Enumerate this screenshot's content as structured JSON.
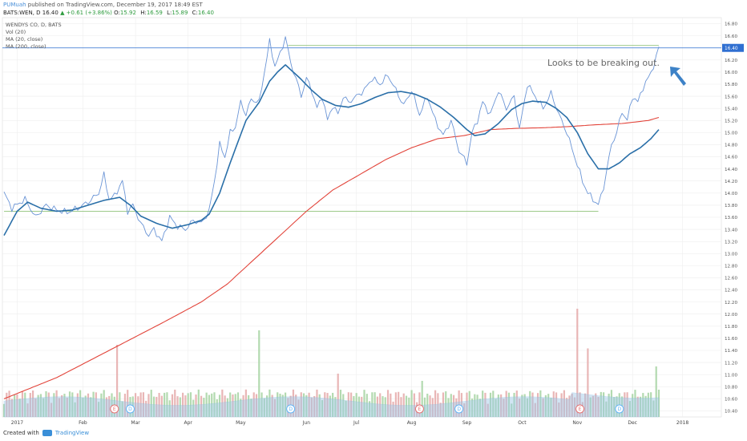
{
  "header": {
    "author": "PUMuah",
    "published_text": "published on TradingView.com, December 19, 2017 18:49 EST",
    "symbol": "BATS:WEN, D",
    "price": "16.40",
    "change": "▲ +0.61 (+3.86%)",
    "open_label": "O:",
    "open": "15.92",
    "high_label": "H:",
    "high": "16.59",
    "low_label": "L:",
    "low": "15.89",
    "close_label": "C:",
    "close": "16.40"
  },
  "legend": {
    "title": "WENDYS CO, D, BATS",
    "vol": "Vol (20)",
    "ma20": "MA (20, close)",
    "ma200": "MA (200, close)"
  },
  "annotation": "Looks to be breaking out.",
  "footer": {
    "created_with": "Created with",
    "brand": "TradingView"
  },
  "colors": {
    "price_line": "#6b95d6",
    "ma20": "#2a6fa8",
    "ma200": "#e2443a",
    "hline": "#8fc27a",
    "current_line": "#2f6fd1",
    "current_badge": "#2f6fd1",
    "arrow": "#3d82c7",
    "vol_up": "#a6d3a2",
    "vol_down": "#e5a9a9",
    "vol_ma": "#9cc7e8",
    "grid": "#eeeeee"
  },
  "chart_data": {
    "type": "line",
    "title": "WENDYS CO, D, BATS",
    "ylim": [
      10.3,
      16.9
    ],
    "y_ticks": [
      "16.80",
      "16.60",
      "16.40",
      "16.20",
      "16.00",
      "15.80",
      "15.60",
      "15.40",
      "15.20",
      "15.00",
      "14.80",
      "14.60",
      "14.40",
      "14.20",
      "14.00",
      "13.80",
      "13.60",
      "13.40",
      "13.20",
      "13.00",
      "12.80",
      "12.60",
      "12.40",
      "12.20",
      "12.00",
      "11.80",
      "11.60",
      "11.40",
      "11.20",
      "11.00",
      "10.80",
      "10.60",
      "10.40"
    ],
    "current_price": "16.40",
    "x_ticks": [
      {
        "label": "2017",
        "i": 5
      },
      {
        "label": "Feb",
        "i": 30
      },
      {
        "label": "Mar",
        "i": 50
      },
      {
        "label": "Apr",
        "i": 70
      },
      {
        "label": "May",
        "i": 90
      },
      {
        "label": "Jun",
        "i": 115
      },
      {
        "label": "Jul",
        "i": 134
      },
      {
        "label": "Aug",
        "i": 155
      },
      {
        "label": "Sep",
        "i": 176
      },
      {
        "label": "Oct",
        "i": 197
      },
      {
        "label": "Nov",
        "i": 218
      },
      {
        "label": "Dec",
        "i": 239
      },
      {
        "label": "2018",
        "i": 258
      }
    ],
    "n_bars": 250,
    "series": [
      {
        "name": "WEN close",
        "anchors": [
          [
            0,
            14.0
          ],
          [
            3,
            13.75
          ],
          [
            8,
            13.9
          ],
          [
            12,
            13.6
          ],
          [
            16,
            13.8
          ],
          [
            20,
            13.72
          ],
          [
            24,
            13.68
          ],
          [
            28,
            13.75
          ],
          [
            32,
            13.85
          ],
          [
            36,
            14.0
          ],
          [
            38,
            14.3
          ],
          [
            40,
            13.9
          ],
          [
            42,
            13.95
          ],
          [
            45,
            14.2
          ],
          [
            47,
            13.7
          ],
          [
            49,
            13.8
          ],
          [
            52,
            13.5
          ],
          [
            55,
            13.3
          ],
          [
            57,
            13.4
          ],
          [
            60,
            13.2
          ],
          [
            63,
            13.6
          ],
          [
            66,
            13.45
          ],
          [
            69,
            13.4
          ],
          [
            72,
            13.55
          ],
          [
            75,
            13.5
          ],
          [
            78,
            13.7
          ],
          [
            80,
            14.2
          ],
          [
            82,
            14.8
          ],
          [
            84,
            14.6
          ],
          [
            86,
            15.0
          ],
          [
            88,
            15.1
          ],
          [
            90,
            15.5
          ],
          [
            92,
            15.3
          ],
          [
            94,
            15.55
          ],
          [
            97,
            15.5
          ],
          [
            99,
            16.0
          ],
          [
            101,
            16.5
          ],
          [
            103,
            16.1
          ],
          [
            105,
            16.3
          ],
          [
            107,
            16.58
          ],
          [
            109,
            16.15
          ],
          [
            111,
            15.9
          ],
          [
            113,
            15.6
          ],
          [
            115,
            15.9
          ],
          [
            117,
            15.7
          ],
          [
            119,
            15.4
          ],
          [
            121,
            15.6
          ],
          [
            123,
            15.2
          ],
          [
            125,
            15.45
          ],
          [
            127,
            15.3
          ],
          [
            129,
            15.6
          ],
          [
            131,
            15.5
          ],
          [
            134,
            15.6
          ],
          [
            137,
            15.7
          ],
          [
            140,
            15.9
          ],
          [
            143,
            15.8
          ],
          [
            146,
            15.95
          ],
          [
            149,
            15.7
          ],
          [
            152,
            15.45
          ],
          [
            155,
            15.7
          ],
          [
            158,
            15.3
          ],
          [
            161,
            15.6
          ],
          [
            164,
            15.2
          ],
          [
            167,
            14.95
          ],
          [
            170,
            15.2
          ],
          [
            173,
            14.7
          ],
          [
            176,
            14.5
          ],
          [
            178,
            15.0
          ],
          [
            180,
            15.2
          ],
          [
            182,
            15.5
          ],
          [
            185,
            15.3
          ],
          [
            188,
            15.7
          ],
          [
            191,
            15.4
          ],
          [
            194,
            15.6
          ],
          [
            196,
            15.05
          ],
          [
            199,
            15.8
          ],
          [
            202,
            15.6
          ],
          [
            205,
            15.4
          ],
          [
            208,
            15.65
          ],
          [
            211,
            15.3
          ],
          [
            214,
            15.0
          ],
          [
            217,
            14.6
          ],
          [
            220,
            14.2
          ],
          [
            222,
            14.0
          ],
          [
            224,
            13.9
          ],
          [
            226,
            13.8
          ],
          [
            228,
            14.1
          ],
          [
            231,
            14.8
          ],
          [
            233,
            15.0
          ],
          [
            235,
            15.35
          ],
          [
            237,
            15.2
          ],
          [
            239,
            15.6
          ],
          [
            241,
            15.5
          ],
          [
            243,
            15.75
          ],
          [
            245,
            15.9
          ],
          [
            247,
            16.1
          ],
          [
            249,
            16.4
          ]
        ]
      },
      {
        "name": "MA (20, close)",
        "anchors": [
          [
            0,
            13.3
          ],
          [
            5,
            13.7
          ],
          [
            9,
            13.85
          ],
          [
            14,
            13.75
          ],
          [
            20,
            13.7
          ],
          [
            26,
            13.72
          ],
          [
            32,
            13.8
          ],
          [
            38,
            13.88
          ],
          [
            44,
            13.93
          ],
          [
            48,
            13.8
          ],
          [
            52,
            13.62
          ],
          [
            58,
            13.5
          ],
          [
            64,
            13.42
          ],
          [
            70,
            13.48
          ],
          [
            75,
            13.55
          ],
          [
            78,
            13.65
          ],
          [
            82,
            14.0
          ],
          [
            86,
            14.5
          ],
          [
            92,
            15.2
          ],
          [
            97,
            15.5
          ],
          [
            101,
            15.85
          ],
          [
            104,
            16.0
          ],
          [
            107,
            16.12
          ],
          [
            110,
            16.0
          ],
          [
            113,
            15.88
          ],
          [
            117,
            15.7
          ],
          [
            121,
            15.55
          ],
          [
            126,
            15.45
          ],
          [
            131,
            15.42
          ],
          [
            136,
            15.48
          ],
          [
            141,
            15.58
          ],
          [
            146,
            15.66
          ],
          [
            151,
            15.68
          ],
          [
            156,
            15.64
          ],
          [
            161,
            15.55
          ],
          [
            166,
            15.42
          ],
          [
            171,
            15.25
          ],
          [
            176,
            15.05
          ],
          [
            179,
            14.95
          ],
          [
            183,
            14.98
          ],
          [
            188,
            15.15
          ],
          [
            193,
            15.38
          ],
          [
            197,
            15.48
          ],
          [
            201,
            15.52
          ],
          [
            206,
            15.5
          ],
          [
            210,
            15.4
          ],
          [
            214,
            15.25
          ],
          [
            218,
            15.0
          ],
          [
            222,
            14.65
          ],
          [
            226,
            14.4
          ],
          [
            230,
            14.4
          ],
          [
            234,
            14.5
          ],
          [
            238,
            14.65
          ],
          [
            242,
            14.75
          ],
          [
            246,
            14.9
          ],
          [
            249,
            15.05
          ]
        ]
      },
      {
        "name": "MA (200, close)",
        "anchors": [
          [
            0,
            10.6
          ],
          [
            20,
            10.95
          ],
          [
            40,
            11.4
          ],
          [
            60,
            11.85
          ],
          [
            75,
            12.2
          ],
          [
            85,
            12.5
          ],
          [
            95,
            12.9
          ],
          [
            105,
            13.3
          ],
          [
            115,
            13.7
          ],
          [
            125,
            14.05
          ],
          [
            135,
            14.3
          ],
          [
            145,
            14.55
          ],
          [
            155,
            14.75
          ],
          [
            165,
            14.9
          ],
          [
            175,
            14.95
          ],
          [
            185,
            15.05
          ],
          [
            195,
            15.07
          ],
          [
            205,
            15.08
          ],
          [
            215,
            15.1
          ],
          [
            225,
            15.13
          ],
          [
            235,
            15.15
          ],
          [
            245,
            15.2
          ],
          [
            249,
            15.25
          ]
        ]
      }
    ],
    "hlines": [
      {
        "y": 16.44,
        "from": 108,
        "to": 249
      },
      {
        "y": 13.7,
        "from": 0,
        "to": 226
      }
    ],
    "events": [
      {
        "label": "E",
        "i": 42,
        "color": "#e57373"
      },
      {
        "label": "D",
        "i": 48,
        "color": "#64b5f6"
      },
      {
        "label": "D",
        "i": 109,
        "color": "#64b5f6"
      },
      {
        "label": "E",
        "i": 158,
        "color": "#e57373"
      },
      {
        "label": "D",
        "i": 173,
        "color": "#64b5f6"
      },
      {
        "label": "E",
        "i": 219,
        "color": "#e57373"
      },
      {
        "label": "D",
        "i": 234,
        "color": "#64b5f6"
      }
    ],
    "volume_spikes": [
      {
        "i": 43,
        "v": 1.0
      },
      {
        "i": 97,
        "v": 1.2
      },
      {
        "i": 127,
        "v": 0.6
      },
      {
        "i": 159,
        "v": 0.5
      },
      {
        "i": 218,
        "v": 1.5
      },
      {
        "i": 222,
        "v": 0.95
      },
      {
        "i": 248,
        "v": 0.7
      }
    ]
  }
}
